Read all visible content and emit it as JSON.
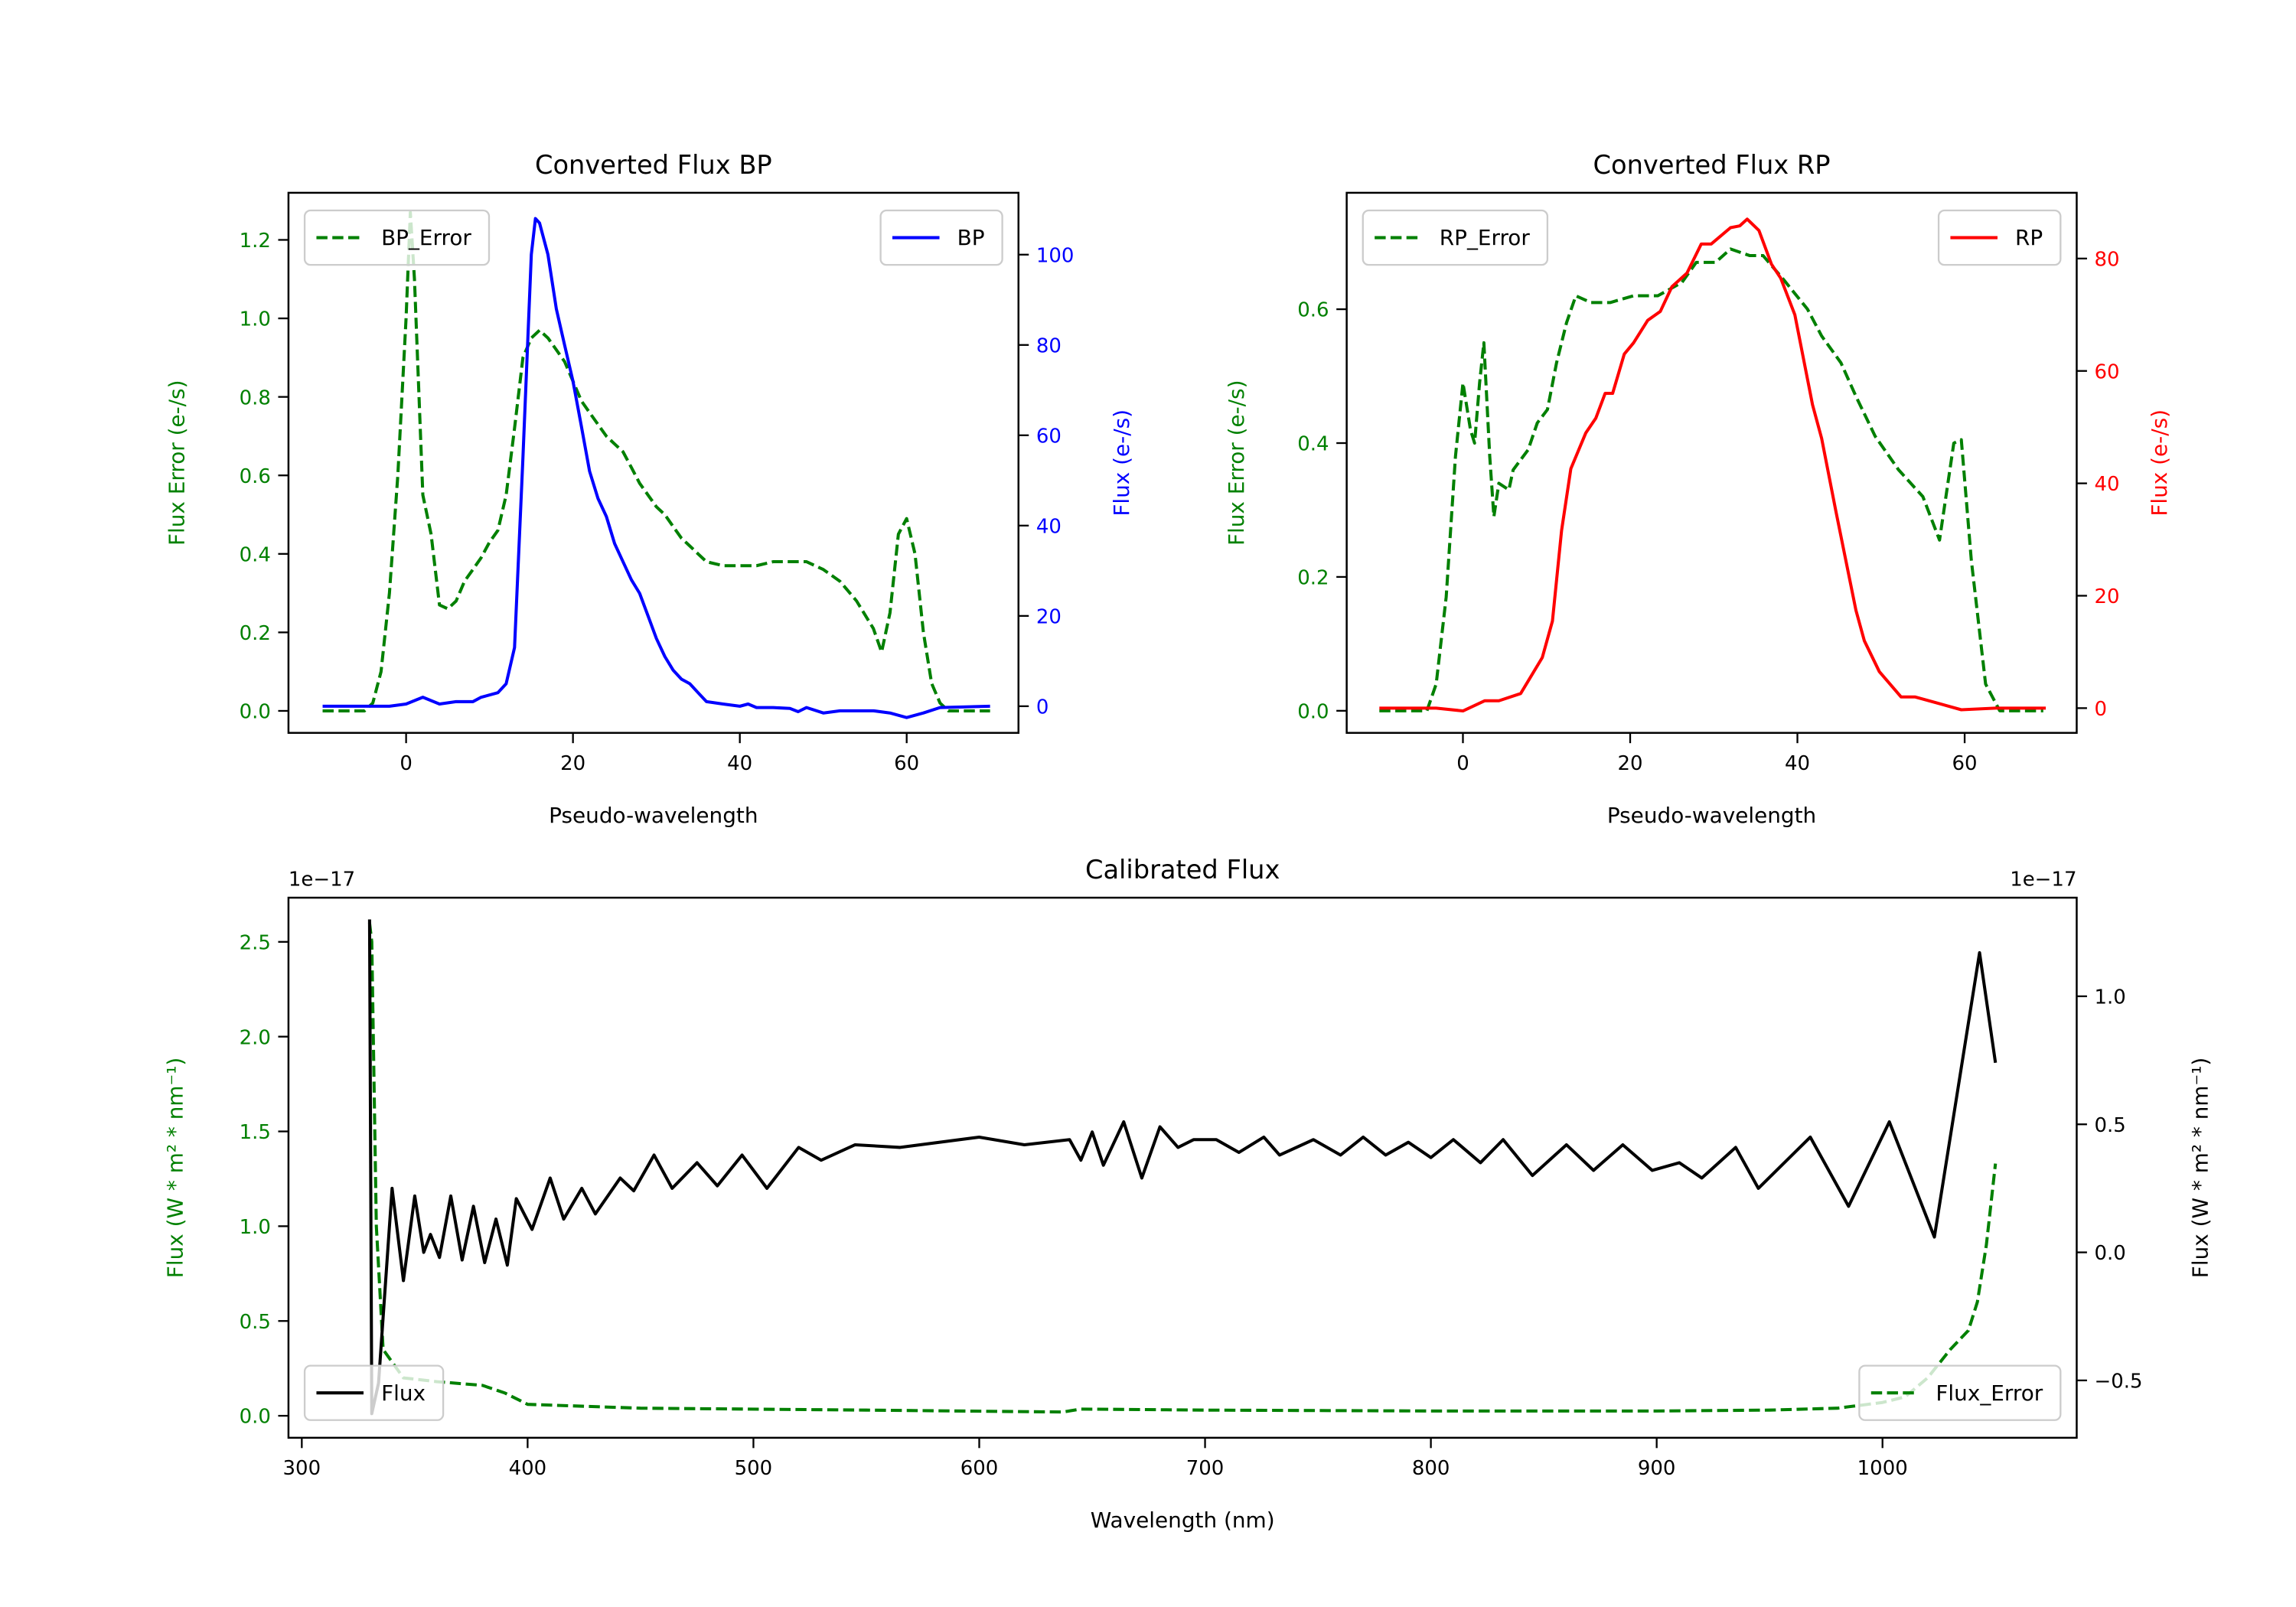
{
  "chart_data": [
    {
      "type": "line",
      "title": "Converted Flux BP",
      "xlabel": "Pseudo-wavelength",
      "ylabel_left": "Flux Error (e-/s)",
      "ylabel_right": "Flux (e-/s)",
      "left_color": "#008000",
      "right_color": "#0000ff",
      "xlim": [
        -14.1,
        73.4
      ],
      "ylim_left": [
        -0.056,
        1.32
      ],
      "ylim_right": [
        -5.9,
        113.7
      ],
      "xticks": [
        "0",
        "20",
        "40",
        "60"
      ],
      "yticks_left": [
        "0.0",
        "0.2",
        "0.4",
        "0.6",
        "0.8",
        "1.0",
        "1.2"
      ],
      "yticks_right": [
        "0",
        "20",
        "40",
        "60",
        "80",
        "100"
      ],
      "series": [
        {
          "name": "BP_Error",
          "axis": "left",
          "color": "#008000",
          "style": "dashed",
          "legend": "upper left",
          "x": [
            -10,
            -5,
            -4,
            -3,
            -2,
            -1,
            0,
            0.5,
            1,
            2,
            3,
            4,
            5,
            6,
            7,
            8,
            9,
            10,
            11,
            12,
            13,
            14,
            15,
            16,
            17,
            18,
            19,
            20,
            21,
            22,
            23,
            24,
            25,
            26,
            27,
            28,
            29,
            30,
            31,
            32,
            33,
            34,
            35,
            36,
            38,
            40,
            42,
            44,
            46,
            48,
            50,
            52,
            54,
            56,
            57,
            58,
            59,
            60,
            61,
            62,
            63,
            64,
            65,
            70
          ],
          "y": [
            0,
            0,
            0.02,
            0.1,
            0.3,
            0.6,
            1.0,
            1.27,
            1.1,
            0.55,
            0.45,
            0.27,
            0.26,
            0.28,
            0.33,
            0.36,
            0.39,
            0.43,
            0.46,
            0.55,
            0.72,
            0.9,
            0.95,
            0.97,
            0.95,
            0.92,
            0.89,
            0.84,
            0.79,
            0.76,
            0.73,
            0.7,
            0.68,
            0.66,
            0.62,
            0.58,
            0.55,
            0.52,
            0.5,
            0.47,
            0.44,
            0.42,
            0.4,
            0.38,
            0.37,
            0.37,
            0.37,
            0.38,
            0.38,
            0.38,
            0.36,
            0.33,
            0.28,
            0.21,
            0.15,
            0.25,
            0.45,
            0.49,
            0.4,
            0.2,
            0.07,
            0.02,
            0,
            0
          ]
        },
        {
          "name": "BP",
          "axis": "right",
          "color": "#0000ff",
          "style": "solid",
          "legend": "upper right",
          "x": [
            -10,
            -5,
            -2,
            0,
            2,
            4,
            6,
            8,
            9,
            11,
            12,
            13,
            14,
            15,
            15.5,
            16,
            17,
            18,
            19,
            20,
            21,
            22,
            23,
            24,
            25,
            26,
            27,
            28,
            29,
            30,
            31,
            32,
            33,
            34,
            35,
            36,
            38,
            40,
            41,
            42,
            44,
            46,
            47,
            48,
            50,
            52,
            54,
            56,
            58,
            60,
            62,
            64,
            70
          ],
          "y": [
            0,
            0,
            0,
            0.5,
            2,
            0.5,
            1,
            1,
            2,
            3,
            5,
            13,
            55,
            100,
            108,
            107,
            100,
            88,
            80,
            72,
            62,
            52,
            46,
            42,
            36,
            32,
            28,
            25,
            20,
            15,
            11,
            8,
            6,
            5,
            3,
            1,
            0.5,
            0,
            0.5,
            -0.3,
            -0.3,
            -0.5,
            -1.2,
            -0.3,
            -1.5,
            -1,
            -1,
            -1,
            -1.5,
            -2.5,
            -1.5,
            -0.3,
            0
          ]
        }
      ],
      "legends": [
        {
          "label": "BP_Error"
        },
        {
          "label": "BP"
        }
      ]
    },
    {
      "type": "line",
      "title": "Converted Flux RP",
      "xlabel": "Pseudo-wavelength",
      "ylabel_left": "Flux Error (e-/s)",
      "ylabel_right": "Flux (e-/s)",
      "left_color": "#008000",
      "right_color": "#ff0000",
      "xlim": [
        -13.9,
        73.4
      ],
      "ylim_left": [
        -0.033,
        0.774
      ],
      "ylim_right": [
        -4.4,
        91.7
      ],
      "xticks": [
        "0",
        "20",
        "40",
        "60"
      ],
      "yticks_left": [
        "0.0",
        "0.2",
        "0.4",
        "0.6"
      ],
      "yticks_right": [
        "0",
        "20",
        "40",
        "60",
        "80"
      ],
      "series": [
        {
          "name": "RP_Error",
          "axis": "left",
          "color": "#008000",
          "style": "dashed",
          "legend": "upper left",
          "x": [
            -10,
            -4.3,
            -3.2,
            -2,
            -0.9,
            0,
            0.9,
            1.4,
            2,
            2.5,
            3.2,
            3.7,
            4.3,
            5.5,
            6,
            7.8,
            8.9,
            10.1,
            11.2,
            12.4,
            13.5,
            15.3,
            17.6,
            20.4,
            23.3,
            26.2,
            27.9,
            30.2,
            32,
            34.3,
            35.9,
            38.3,
            41.2,
            42.9,
            45.2,
            47,
            49.3,
            52.1,
            55,
            57,
            58.7,
            59.6,
            60.8,
            62.5,
            64.2,
            69.4
          ],
          "y": [
            0,
            0,
            0.04,
            0.17,
            0.38,
            0.49,
            0.42,
            0.4,
            0.49,
            0.55,
            0.38,
            0.29,
            0.34,
            0.33,
            0.36,
            0.39,
            0.43,
            0.45,
            0.52,
            0.58,
            0.62,
            0.61,
            0.61,
            0.62,
            0.62,
            0.64,
            0.67,
            0.67,
            0.69,
            0.68,
            0.68,
            0.645,
            0.6,
            0.56,
            0.52,
            0.47,
            0.41,
            0.36,
            0.32,
            0.255,
            0.4,
            0.405,
            0.225,
            0.04,
            0,
            0
          ]
        },
        {
          "name": "RP",
          "axis": "right",
          "color": "#ff0000",
          "style": "solid",
          "legend": "upper right",
          "x": [
            -10,
            -3.2,
            0,
            2.6,
            4.3,
            6.9,
            9.5,
            10.7,
            11.8,
            12.9,
            14.7,
            15.9,
            17,
            17.9,
            19.3,
            20.4,
            22.1,
            23.6,
            25,
            26.8,
            28.5,
            29.7,
            32,
            33.1,
            34,
            35.4,
            36.9,
            38,
            39.7,
            41.8,
            42.9,
            44.6,
            47,
            48,
            49.8,
            52.4,
            54.1,
            56.5,
            59.6,
            63.7,
            69.7
          ],
          "y": [
            0,
            0,
            -0.5,
            1.3,
            1.3,
            2.6,
            9,
            15.5,
            31.6,
            42.6,
            49,
            51.6,
            56,
            56,
            63,
            65,
            69,
            70.6,
            75,
            77.4,
            82.6,
            82.6,
            85.5,
            85.8,
            87,
            85,
            79,
            76.5,
            70,
            54,
            48,
            35,
            17.4,
            12,
            6.5,
            2,
            2,
            1,
            -0.3,
            0,
            0
          ]
        }
      ],
      "legends": [
        {
          "label": "RP_Error"
        },
        {
          "label": "RP"
        }
      ]
    },
    {
      "type": "line",
      "title": "Calibrated Flux",
      "xlabel": "Wavelength (nm)",
      "ylabel_left": "Flux (W * m² * nm⁻¹)",
      "ylabel_right": "Flux (W * m² * nm⁻¹)",
      "left_color": "#008000",
      "right_color": "#000000",
      "offset_left": "1e−17",
      "offset_right": "1e−17",
      "xlim": [
        294.1,
        1086
      ],
      "ylim_left": [
        -0.116,
        2.733
      ],
      "ylim_right": [
        -0.724,
        1.385
      ],
      "xticks": [
        "300",
        "400",
        "500",
        "600",
        "700",
        "800",
        "900",
        "1000"
      ],
      "yticks_left": [
        "0.0",
        "0.5",
        "1.0",
        "1.5",
        "2.0",
        "2.5"
      ],
      "yticks_right": [
        "−0.5",
        "0.0",
        "0.5",
        "1.0"
      ],
      "series": [
        {
          "name": "Flux_Error",
          "axis": "left",
          "color": "#008000",
          "style": "dashed",
          "legend": "lower right",
          "x": [
            330,
            331,
            333,
            336,
            345,
            360,
            380,
            390,
            400,
            450,
            550,
            637,
            645,
            700,
            800,
            900,
            950,
            980,
            1000,
            1010,
            1020,
            1030,
            1038,
            1042,
            1046,
            1050
          ],
          "y": [
            2.6,
            2.5,
            1.0,
            0.35,
            0.2,
            0.18,
            0.16,
            0.12,
            0.06,
            0.04,
            0.03,
            0.02,
            0.035,
            0.03,
            0.025,
            0.025,
            0.03,
            0.04,
            0.07,
            0.1,
            0.2,
            0.35,
            0.45,
            0.6,
            0.9,
            1.33
          ]
        },
        {
          "name": "Flux",
          "axis": "right",
          "color": "#000000",
          "style": "solid",
          "legend": "lower left",
          "x": [
            330,
            331,
            334,
            340,
            345,
            350,
            354,
            357,
            361,
            366,
            371,
            376,
            381,
            386,
            391,
            395,
            402,
            410,
            416,
            424,
            430,
            441,
            447,
            456,
            464,
            475,
            484,
            495,
            506,
            520,
            530,
            545,
            565,
            600,
            620,
            640,
            645,
            650,
            655,
            664,
            672,
            680,
            688,
            695,
            705,
            715,
            726,
            733,
            748,
            760,
            770,
            780,
            790,
            800,
            810,
            822,
            832,
            845,
            860,
            872,
            885,
            898,
            910,
            920,
            935,
            945,
            968,
            985,
            1003,
            1023,
            1043,
            1050
          ],
          "y": [
            1.3,
            -0.63,
            -0.51,
            0.25,
            -0.11,
            0.22,
            0.0,
            0.07,
            -0.02,
            0.22,
            -0.03,
            0.18,
            -0.04,
            0.13,
            -0.05,
            0.21,
            0.09,
            0.29,
            0.13,
            0.25,
            0.15,
            0.29,
            0.24,
            0.38,
            0.25,
            0.35,
            0.26,
            0.38,
            0.25,
            0.41,
            0.36,
            0.42,
            0.41,
            0.45,
            0.42,
            0.44,
            0.36,
            0.47,
            0.34,
            0.51,
            0.29,
            0.49,
            0.41,
            0.44,
            0.44,
            0.39,
            0.45,
            0.38,
            0.44,
            0.38,
            0.45,
            0.38,
            0.43,
            0.37,
            0.44,
            0.35,
            0.44,
            0.3,
            0.42,
            0.32,
            0.42,
            0.32,
            0.35,
            0.29,
            0.41,
            0.25,
            0.45,
            0.18,
            0.51,
            0.06,
            1.17,
            0.74
          ]
        }
      ],
      "legends": [
        {
          "label": "Flux_Error"
        },
        {
          "label": "Flux"
        }
      ]
    }
  ]
}
